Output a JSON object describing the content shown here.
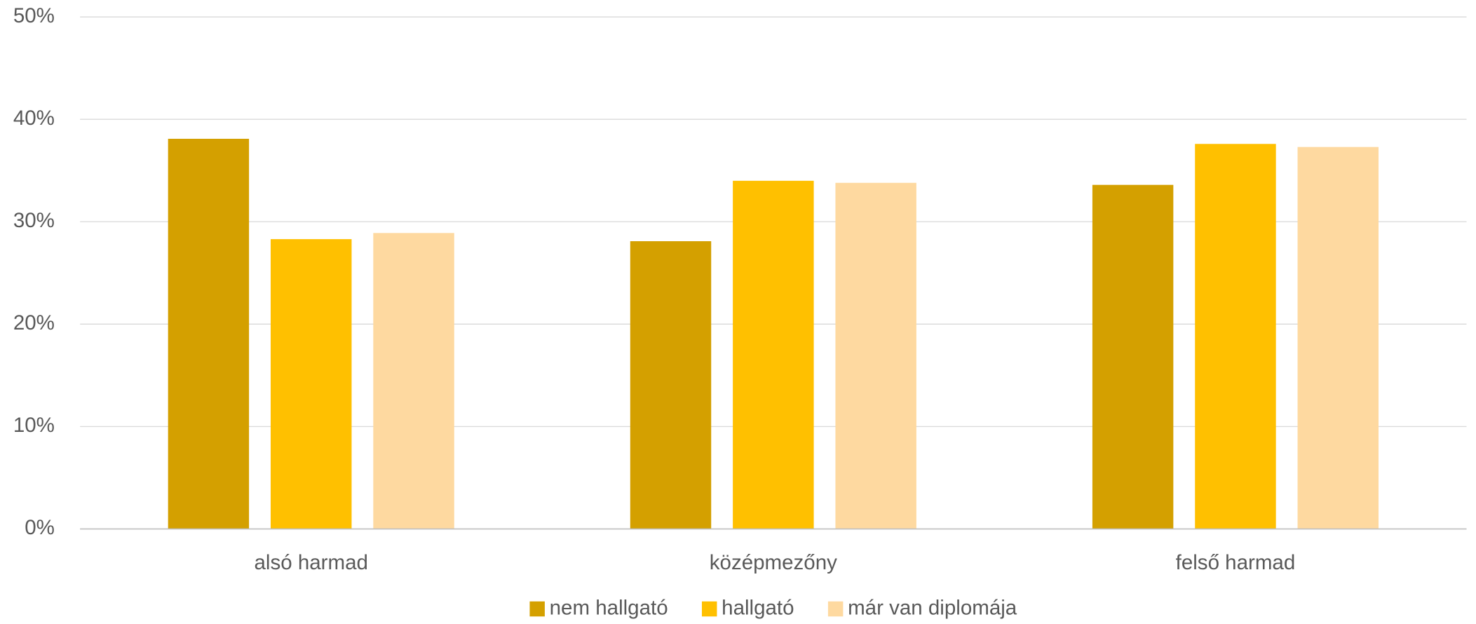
{
  "chart_data": {
    "type": "bar",
    "categories": [
      "alsó harmad",
      "középmezőny",
      "felső harmad"
    ],
    "series": [
      {
        "name": "nem hallgató",
        "color": "#d4a000",
        "values": [
          38.1,
          28.1,
          33.6
        ]
      },
      {
        "name": "hallgató",
        "color": "#ffc000",
        "values": [
          28.3,
          34.0,
          37.6
        ]
      },
      {
        "name": "már van diplomája",
        "color": "#fed9a0",
        "values": [
          28.9,
          33.8,
          37.3
        ]
      }
    ],
    "ylim": [
      0,
      50
    ],
    "yticks": [
      {
        "value": 0,
        "label": "0%"
      },
      {
        "value": 10,
        "label": "10%"
      },
      {
        "value": 20,
        "label": "20%"
      },
      {
        "value": 30,
        "label": "30%"
      },
      {
        "value": 40,
        "label": "40%"
      },
      {
        "value": 50,
        "label": "50%"
      }
    ],
    "grid": true,
    "legend": "bottom"
  }
}
